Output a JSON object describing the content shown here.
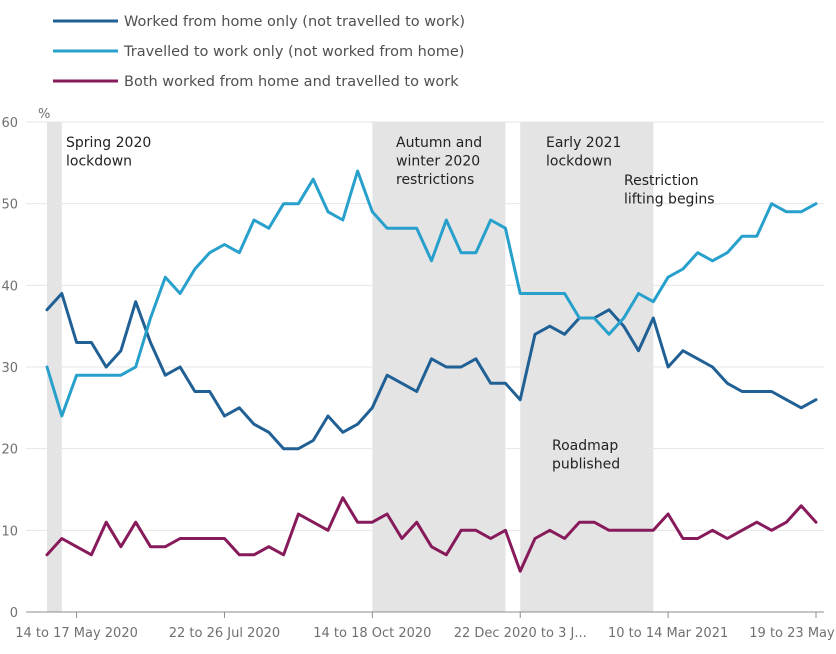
{
  "chart_data": {
    "type": "line",
    "ylabel": "%",
    "ylim": [
      0,
      60
    ],
    "yticks": [
      0,
      10,
      20,
      30,
      40,
      50,
      60
    ],
    "grid": true,
    "legend_position": "top-left",
    "x_count": 53,
    "x_tick_labels": [
      {
        "index": 2,
        "label": "14 to 17 May 2020"
      },
      {
        "index": 12,
        "label": "22 to 26 Jul 2020"
      },
      {
        "index": 22,
        "label": "14 to 18 Oct 2020"
      },
      {
        "index": 32,
        "label": "22 Dec 2020 to 3 J..."
      },
      {
        "index": 42,
        "label": "10 to 14 Mar 2021"
      },
      {
        "index": 52,
        "label": "19 to 23 May"
      }
    ],
    "series": [
      {
        "name": "Worked from home only (not travelled to work)",
        "color": "#206095",
        "values": [
          37,
          39,
          33,
          33,
          30,
          32,
          38,
          33,
          29,
          30,
          27,
          27,
          24,
          25,
          23,
          22,
          20,
          20,
          21,
          24,
          22,
          23,
          25,
          29,
          28,
          27,
          31,
          30,
          30,
          31,
          28,
          28,
          26,
          34,
          35,
          34,
          36,
          36,
          37,
          35,
          32,
          36,
          30,
          32,
          31,
          30,
          28,
          27,
          27,
          27,
          26,
          25,
          26
        ]
      },
      {
        "name": "Travelled to work only (not worked from home)",
        "color": "#27a0cc",
        "values": [
          30,
          24,
          29,
          29,
          29,
          29,
          30,
          36,
          41,
          39,
          42,
          44,
          45,
          44,
          48,
          47,
          50,
          50,
          53,
          49,
          48,
          54,
          49,
          47,
          47,
          47,
          43,
          48,
          44,
          44,
          48,
          47,
          39,
          39,
          39,
          39,
          36,
          36,
          34,
          36,
          39,
          38,
          41,
          42,
          44,
          43,
          44,
          46,
          46,
          50,
          49,
          49,
          50
        ]
      },
      {
        "name": "Both worked from home and travelled to work",
        "color": "#871a5b",
        "values": [
          7,
          9,
          8,
          7,
          11,
          8,
          11,
          8,
          8,
          9,
          9,
          9,
          9,
          7,
          7,
          8,
          7,
          12,
          11,
          10,
          14,
          11,
          11,
          12,
          9,
          11,
          8,
          7,
          10,
          10,
          9,
          10,
          5,
          9,
          10,
          9,
          11,
          11,
          10,
          10,
          10,
          10,
          12,
          9,
          9,
          10,
          9,
          10,
          11,
          10,
          11,
          13,
          11
        ]
      }
    ],
    "shaded_periods": [
      {
        "start": 0,
        "end": 1,
        "label_lines": [
          "Spring 2020",
          "lockdown"
        ]
      },
      {
        "start": 22,
        "end": 31,
        "label_lines": [
          "Autumn and",
          "winter 2020",
          "restrictions"
        ]
      },
      {
        "start": 32,
        "end": 41,
        "label_lines": [
          "Early 2021",
          "lockdown"
        ]
      }
    ],
    "annotations": [
      {
        "label_lines": [
          "Restriction",
          "lifting begins"
        ]
      },
      {
        "label_lines": [
          "Roadmap",
          "published"
        ]
      }
    ]
  }
}
